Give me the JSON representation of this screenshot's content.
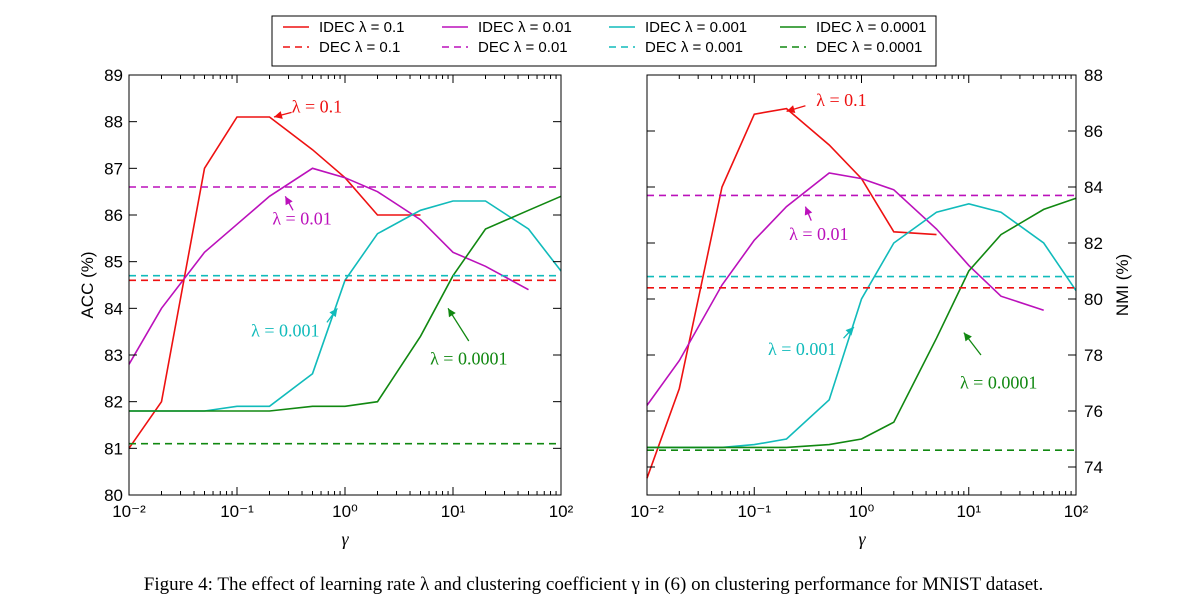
{
  "figure": {
    "caption": "Figure 4: The effect of learning rate λ and clustering coefficient γ in (6) on clustering performance for MNIST dataset."
  },
  "legend": {
    "entries": [
      {
        "label": "IDEC λ = 0.1",
        "color": "#ee1111",
        "style": "solid"
      },
      {
        "label": "IDEC λ = 0.01",
        "color": "#bb11bb",
        "style": "solid"
      },
      {
        "label": "IDEC λ = 0.001",
        "color": "#11bbbb",
        "style": "solid"
      },
      {
        "label": "IDEC λ = 0.0001",
        "color": "#118811",
        "style": "solid"
      },
      {
        "label": "DEC λ = 0.1",
        "color": "#ee1111",
        "style": "dashed"
      },
      {
        "label": "DEC λ = 0.01",
        "color": "#bb11bb",
        "style": "dashed"
      },
      {
        "label": "DEC λ = 0.001",
        "color": "#11bbbb",
        "style": "dashed"
      },
      {
        "label": "DEC λ = 0.0001",
        "color": "#118811",
        "style": "dashed"
      }
    ]
  },
  "chart_data": [
    {
      "type": "line",
      "xscale": "log",
      "xlabel": "γ",
      "ylabel": "ACC (%)",
      "xlim": [
        0.01,
        100
      ],
      "ylim": [
        80,
        89
      ],
      "xticks": [
        "10⁻²",
        "10⁻¹",
        "10⁰",
        "10¹",
        "10²"
      ],
      "yticks": [
        "80",
        "81",
        "82",
        "83",
        "84",
        "85",
        "86",
        "87",
        "88",
        "89"
      ],
      "series": [
        {
          "name": "IDEC λ=0.1",
          "color": "#ee1111",
          "style": "solid",
          "x": [
            0.01,
            0.02,
            0.05,
            0.1,
            0.2,
            0.5,
            1,
            2,
            5
          ],
          "y": [
            81.0,
            82.0,
            87.0,
            88.1,
            88.1,
            87.4,
            86.8,
            86.0,
            86.0
          ]
        },
        {
          "name": "IDEC λ=0.01",
          "color": "#bb11bb",
          "style": "solid",
          "x": [
            0.01,
            0.02,
            0.05,
            0.1,
            0.2,
            0.5,
            1,
            2,
            5,
            10,
            20,
            50
          ],
          "y": [
            82.8,
            84.0,
            85.2,
            85.8,
            86.4,
            87.0,
            86.8,
            86.5,
            85.9,
            85.2,
            84.9,
            84.4
          ]
        },
        {
          "name": "IDEC λ=0.001",
          "color": "#11bbbb",
          "style": "solid",
          "x": [
            0.01,
            0.02,
            0.05,
            0.1,
            0.2,
            0.5,
            1,
            2,
            5,
            10,
            20,
            50,
            100
          ],
          "y": [
            81.8,
            81.8,
            81.8,
            81.9,
            81.9,
            82.6,
            84.6,
            85.6,
            86.1,
            86.3,
            86.3,
            85.7,
            84.8
          ]
        },
        {
          "name": "IDEC λ=0.0001",
          "color": "#118811",
          "style": "solid",
          "x": [
            0.01,
            0.02,
            0.05,
            0.1,
            0.2,
            0.5,
            1,
            2,
            5,
            10,
            20,
            50,
            100
          ],
          "y": [
            81.8,
            81.8,
            81.8,
            81.8,
            81.8,
            81.9,
            81.9,
            82.0,
            83.4,
            84.7,
            85.7,
            86.1,
            86.4
          ]
        },
        {
          "name": "DEC λ=0.1",
          "color": "#ee1111",
          "style": "dashed",
          "x": [
            0.01,
            100
          ],
          "y": [
            84.6,
            84.6
          ]
        },
        {
          "name": "DEC λ=0.01",
          "color": "#bb11bb",
          "style": "dashed",
          "x": [
            0.01,
            100
          ],
          "y": [
            86.6,
            86.6
          ]
        },
        {
          "name": "DEC λ=0.001",
          "color": "#11bbbb",
          "style": "dashed",
          "x": [
            0.01,
            100
          ],
          "y": [
            84.7,
            84.7
          ]
        },
        {
          "name": "DEC λ=0.0001",
          "color": "#118811",
          "style": "dashed",
          "x": [
            0.01,
            100
          ],
          "y": [
            81.1,
            81.1
          ]
        }
      ],
      "annotations": [
        {
          "text": "λ = 0.1",
          "color": "#ee1111",
          "x": 0.55,
          "y": 88.2,
          "arrow_to": [
            0.22,
            88.1
          ],
          "arrow_from": [
            0.32,
            88.2
          ]
        },
        {
          "text": "λ = 0.01",
          "color": "#bb11bb",
          "x": 0.4,
          "y": 85.8,
          "arrow_to": [
            0.28,
            86.4
          ],
          "arrow_from": [
            0.33,
            86.1
          ]
        },
        {
          "text": "λ = 0.001",
          "color": "#11bbbb",
          "x": 0.28,
          "y": 83.4,
          "arrow_to": [
            0.85,
            84.0
          ],
          "arrow_from": [
            0.68,
            83.7
          ]
        },
        {
          "text": "λ = 0.0001",
          "color": "#118811",
          "x": 14,
          "y": 82.8,
          "arrow_to": [
            9,
            84.0
          ],
          "arrow_from": [
            14,
            83.3
          ]
        }
      ]
    },
    {
      "type": "line",
      "xscale": "log",
      "xlabel": "γ",
      "ylabel": "NMI (%)",
      "xlim": [
        0.01,
        100
      ],
      "ylim": [
        73,
        88
      ],
      "xticks": [
        "10⁻²",
        "10⁻¹",
        "10⁰",
        "10¹",
        "10²"
      ],
      "yticks": [
        "74",
        "76",
        "78",
        "80",
        "82",
        "84",
        "86",
        "88"
      ],
      "series": [
        {
          "name": "IDEC λ=0.1",
          "color": "#ee1111",
          "style": "solid",
          "x": [
            0.01,
            0.02,
            0.05,
            0.1,
            0.2,
            0.5,
            1,
            2,
            5
          ],
          "y": [
            73.6,
            76.8,
            84.0,
            86.6,
            86.8,
            85.5,
            84.3,
            82.4,
            82.3
          ]
        },
        {
          "name": "IDEC λ=0.01",
          "color": "#bb11bb",
          "style": "solid",
          "x": [
            0.01,
            0.02,
            0.05,
            0.1,
            0.2,
            0.5,
            1,
            2,
            5,
            10,
            20,
            50
          ],
          "y": [
            76.2,
            77.8,
            80.5,
            82.1,
            83.3,
            84.5,
            84.3,
            83.9,
            82.5,
            81.2,
            80.1,
            79.6
          ]
        },
        {
          "name": "IDEC λ=0.001",
          "color": "#11bbbb",
          "style": "solid",
          "x": [
            0.01,
            0.02,
            0.05,
            0.1,
            0.2,
            0.5,
            1,
            2,
            5,
            10,
            20,
            50,
            100
          ],
          "y": [
            74.7,
            74.7,
            74.7,
            74.8,
            75.0,
            76.4,
            80.0,
            82.0,
            83.1,
            83.4,
            83.1,
            82.0,
            80.3
          ]
        },
        {
          "name": "IDEC λ=0.0001",
          "color": "#118811",
          "style": "solid",
          "x": [
            0.01,
            0.02,
            0.05,
            0.1,
            0.2,
            0.5,
            1,
            2,
            5,
            10,
            20,
            50,
            100
          ],
          "y": [
            74.7,
            74.7,
            74.7,
            74.7,
            74.7,
            74.8,
            75.0,
            75.6,
            78.6,
            81.0,
            82.3,
            83.2,
            83.6
          ]
        },
        {
          "name": "DEC λ=0.1",
          "color": "#ee1111",
          "style": "dashed",
          "x": [
            0.01,
            100
          ],
          "y": [
            80.4,
            80.4
          ]
        },
        {
          "name": "DEC λ=0.01",
          "color": "#bb11bb",
          "style": "dashed",
          "x": [
            0.01,
            100
          ],
          "y": [
            83.7,
            83.7
          ]
        },
        {
          "name": "DEC λ=0.001",
          "color": "#11bbbb",
          "style": "dashed",
          "x": [
            0.01,
            100
          ],
          "y": [
            80.8,
            80.8
          ]
        },
        {
          "name": "DEC λ=0.0001",
          "color": "#118811",
          "style": "dashed",
          "x": [
            0.01,
            100
          ],
          "y": [
            74.6,
            74.6
          ]
        }
      ],
      "annotations": [
        {
          "text": "λ = 0.1",
          "color": "#ee1111",
          "x": 0.65,
          "y": 86.9,
          "arrow_to": [
            0.2,
            86.7
          ],
          "arrow_from": [
            0.3,
            86.9
          ]
        },
        {
          "text": "λ = 0.01",
          "color": "#bb11bb",
          "x": 0.4,
          "y": 82.1,
          "arrow_to": [
            0.3,
            83.3
          ],
          "arrow_from": [
            0.34,
            82.8
          ]
        },
        {
          "text": "λ = 0.001",
          "color": "#11bbbb",
          "x": 0.28,
          "y": 78.0,
          "arrow_to": [
            0.85,
            79.0
          ],
          "arrow_from": [
            0.68,
            78.6
          ]
        },
        {
          "text": "λ = 0.0001",
          "color": "#118811",
          "x": 19,
          "y": 76.8,
          "arrow_to": [
            9,
            78.8
          ],
          "arrow_from": [
            13,
            78.0
          ]
        }
      ]
    }
  ]
}
